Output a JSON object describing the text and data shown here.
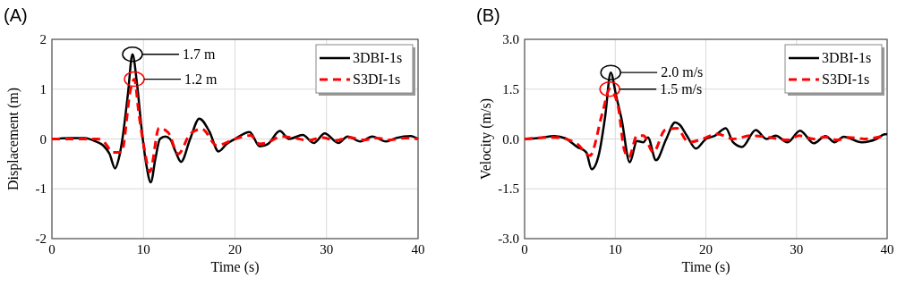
{
  "chart_data": [
    {
      "type": "line",
      "title": "(A)",
      "xlabel": "Time (s)",
      "ylabel": "Displacement (m)",
      "xlim": [
        0,
        40
      ],
      "xticks": [
        0,
        10,
        20,
        30,
        40
      ],
      "ylim": [
        -2,
        2
      ],
      "yticks": [
        -2,
        -1,
        0,
        1,
        2
      ],
      "grid": true,
      "legend": "top right",
      "annotations": [
        "1.7 m",
        "1.2 m"
      ],
      "series": [
        {
          "name": "3DBI-1s",
          "color": "#000000",
          "line_style": "solid",
          "x": [
            0,
            2,
            3.6,
            4.8,
            5.6,
            6.3,
            6.9,
            7.3,
            7.7,
            8.3,
            8.8,
            9.3,
            9.8,
            10.3,
            10.8,
            11.3,
            11.8,
            12.4,
            12.9,
            13.5,
            14.1,
            15.1,
            16.1,
            17.2,
            18.2,
            19.1,
            20,
            21.6,
            22.7,
            23.6,
            24.9,
            25.9,
            27.4,
            28.6,
            29.8,
            31.3,
            32.3,
            33.7,
            35,
            36.5,
            37.6,
            39.2,
            40
          ],
          "values": [
            0,
            0.02,
            0.02,
            -0.05,
            -0.13,
            -0.3,
            -0.59,
            -0.4,
            0,
            0.9,
            1.7,
            1.1,
            0.2,
            -0.5,
            -0.87,
            -0.4,
            0,
            0.05,
            0,
            -0.25,
            -0.46,
            0,
            0.41,
            0.15,
            -0.25,
            -0.1,
            0,
            0.14,
            -0.15,
            -0.1,
            0.16,
            0,
            0.08,
            -0.08,
            0.11,
            -0.08,
            0.05,
            -0.05,
            0.05,
            -0.05,
            0.02,
            0.06,
            0
          ]
        },
        {
          "name": "S3DI-1s",
          "color": "#ff0000",
          "line_style": "dashed",
          "x": [
            0,
            2,
            5,
            5.6,
            6.7,
            7.6,
            8.6,
            9,
            9.5,
            10.1,
            10.7,
            11.7,
            12.7,
            13.8,
            15.1,
            16.4,
            18,
            20,
            21.7,
            22.7,
            23.6,
            25,
            26.5,
            28,
            29.5,
            31,
            32.5,
            34,
            35.5,
            37,
            38.5,
            40
          ],
          "values": [
            0,
            0,
            0,
            -0.04,
            -0.27,
            -0.27,
            1,
            1.2,
            0.5,
            -0.2,
            -0.66,
            0.22,
            0.13,
            -0.3,
            0.1,
            0.2,
            -0.13,
            0,
            0.07,
            -0.1,
            -0.07,
            0.05,
            0.02,
            -0.03,
            0.03,
            -0.03,
            0.03,
            -0.02,
            0.02,
            -0.02,
            0.02,
            0
          ]
        }
      ]
    },
    {
      "type": "line",
      "title": "(B)",
      "xlabel": "Time (s)",
      "ylabel": "Velocity (m/s)",
      "xlim": [
        0,
        40
      ],
      "xticks": [
        0,
        10,
        20,
        30,
        40
      ],
      "ylim": [
        -3,
        3
      ],
      "yticks": [
        {
          "value": -3,
          "label": "-3.0"
        },
        {
          "value": -1.5,
          "label": "-1.5"
        },
        {
          "value": 0,
          "label": "0.0"
        },
        {
          "value": 1.5,
          "label": "1.5"
        },
        {
          "value": 3,
          "label": "3.0"
        }
      ],
      "grid": true,
      "legend": "top right",
      "annotations": [
        "2.0 m/s",
        "1.5 m/s"
      ],
      "series": [
        {
          "name": "3DBI-1s",
          "color": "#000000",
          "line_style": "solid",
          "x": [
            0,
            1.5,
            3.3,
            4.5,
            5.8,
            6.8,
            7.4,
            8.2,
            8.9,
            9.5,
            10.1,
            10.7,
            11.6,
            12.4,
            13.1,
            13.6,
            14.5,
            15.6,
            16.6,
            17.1,
            17.9,
            18.9,
            20,
            21,
            22.2,
            23,
            24,
            25.5,
            26.7,
            27.7,
            29,
            30.4,
            31.9,
            33.2,
            34.2,
            35.2,
            37.2,
            38.8,
            39.7,
            40
          ],
          "values": [
            0,
            0.03,
            0.09,
            0.02,
            -0.24,
            -0.4,
            -0.91,
            -0.46,
            0.7,
            2,
            1.3,
            0.6,
            -0.7,
            -0.06,
            -0.1,
            0.05,
            -0.64,
            -0.02,
            0.5,
            0.43,
            0.1,
            -0.29,
            0,
            0.1,
            0.32,
            -0.1,
            -0.24,
            0.27,
            0,
            0.1,
            -0.1,
            0.25,
            -0.13,
            0.09,
            -0.1,
            0.07,
            -0.1,
            0,
            0.14,
            0.15
          ]
        },
        {
          "name": "S3DI-1s",
          "color": "#ff0000",
          "line_style": "dashed",
          "x": [
            0,
            3.3,
            5.8,
            7.2,
            8.6,
            9.4,
            10.3,
            11,
            11.5,
            12.4,
            13.1,
            14.2,
            15.5,
            16.8,
            18.1,
            19.3,
            21.3,
            23,
            25,
            27,
            29,
            30.3,
            31.9,
            33.2,
            34.5,
            35.8,
            37.5,
            39.7
          ],
          "values": [
            0,
            0.05,
            -0.15,
            -0.5,
            0.8,
            1.5,
            1,
            -0.33,
            -0.55,
            0.1,
            0.1,
            -0.4,
            0.27,
            0.32,
            -0.1,
            -0.03,
            0.15,
            0,
            0.1,
            0.05,
            -0.03,
            0.1,
            0,
            0.06,
            -0.03,
            0.05,
            0,
            0.1
          ]
        }
      ]
    }
  ]
}
